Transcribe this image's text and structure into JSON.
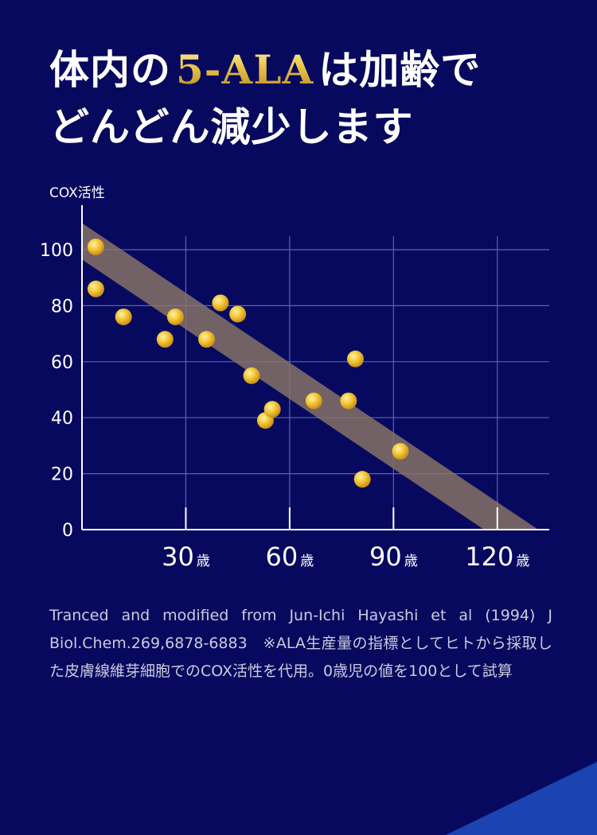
{
  "headline": {
    "line1_pre": "体内の",
    "line1_highlight": "5-ALA",
    "line1_post": "は加齢で",
    "line2": "どんどん減少します",
    "highlight_color": "#e9c24a"
  },
  "chart_data": {
    "type": "scatter",
    "title": "",
    "ylabel": "COX活性",
    "xlabel": "",
    "x_unit": "歳",
    "xlim": [
      0,
      135
    ],
    "ylim": [
      0,
      100
    ],
    "x_ticks": [
      30,
      60,
      90,
      120
    ],
    "y_ticks": [
      0,
      20,
      40,
      60,
      80,
      100
    ],
    "grid": true,
    "trend_line": {
      "x": [
        0,
        124
      ],
      "y": [
        103,
        0
      ]
    },
    "series": [
      {
        "name": "",
        "x": [
          4,
          4,
          12,
          24,
          27,
          36,
          40,
          45,
          49,
          53,
          55,
          67,
          77,
          79,
          81,
          92
        ],
        "y": [
          101,
          86,
          76,
          68,
          76,
          68,
          81,
          77,
          55,
          39,
          43,
          46,
          46,
          61,
          18,
          28
        ]
      }
    ],
    "colors": {
      "background": "#07095e",
      "grid": "#5c63b0",
      "axis": "#ffffff",
      "point": "#f2c230",
      "trend": "#8a7566"
    }
  },
  "note": "Tranced and modified from Jun-Ichi Hayashi et al (1994) J Biol.Chem.269,6878-6883　※ALA生産量の指標としてヒトから採取した皮膚線維芽細胞でのCOX活性を代用。0歳児の値を100として試算"
}
